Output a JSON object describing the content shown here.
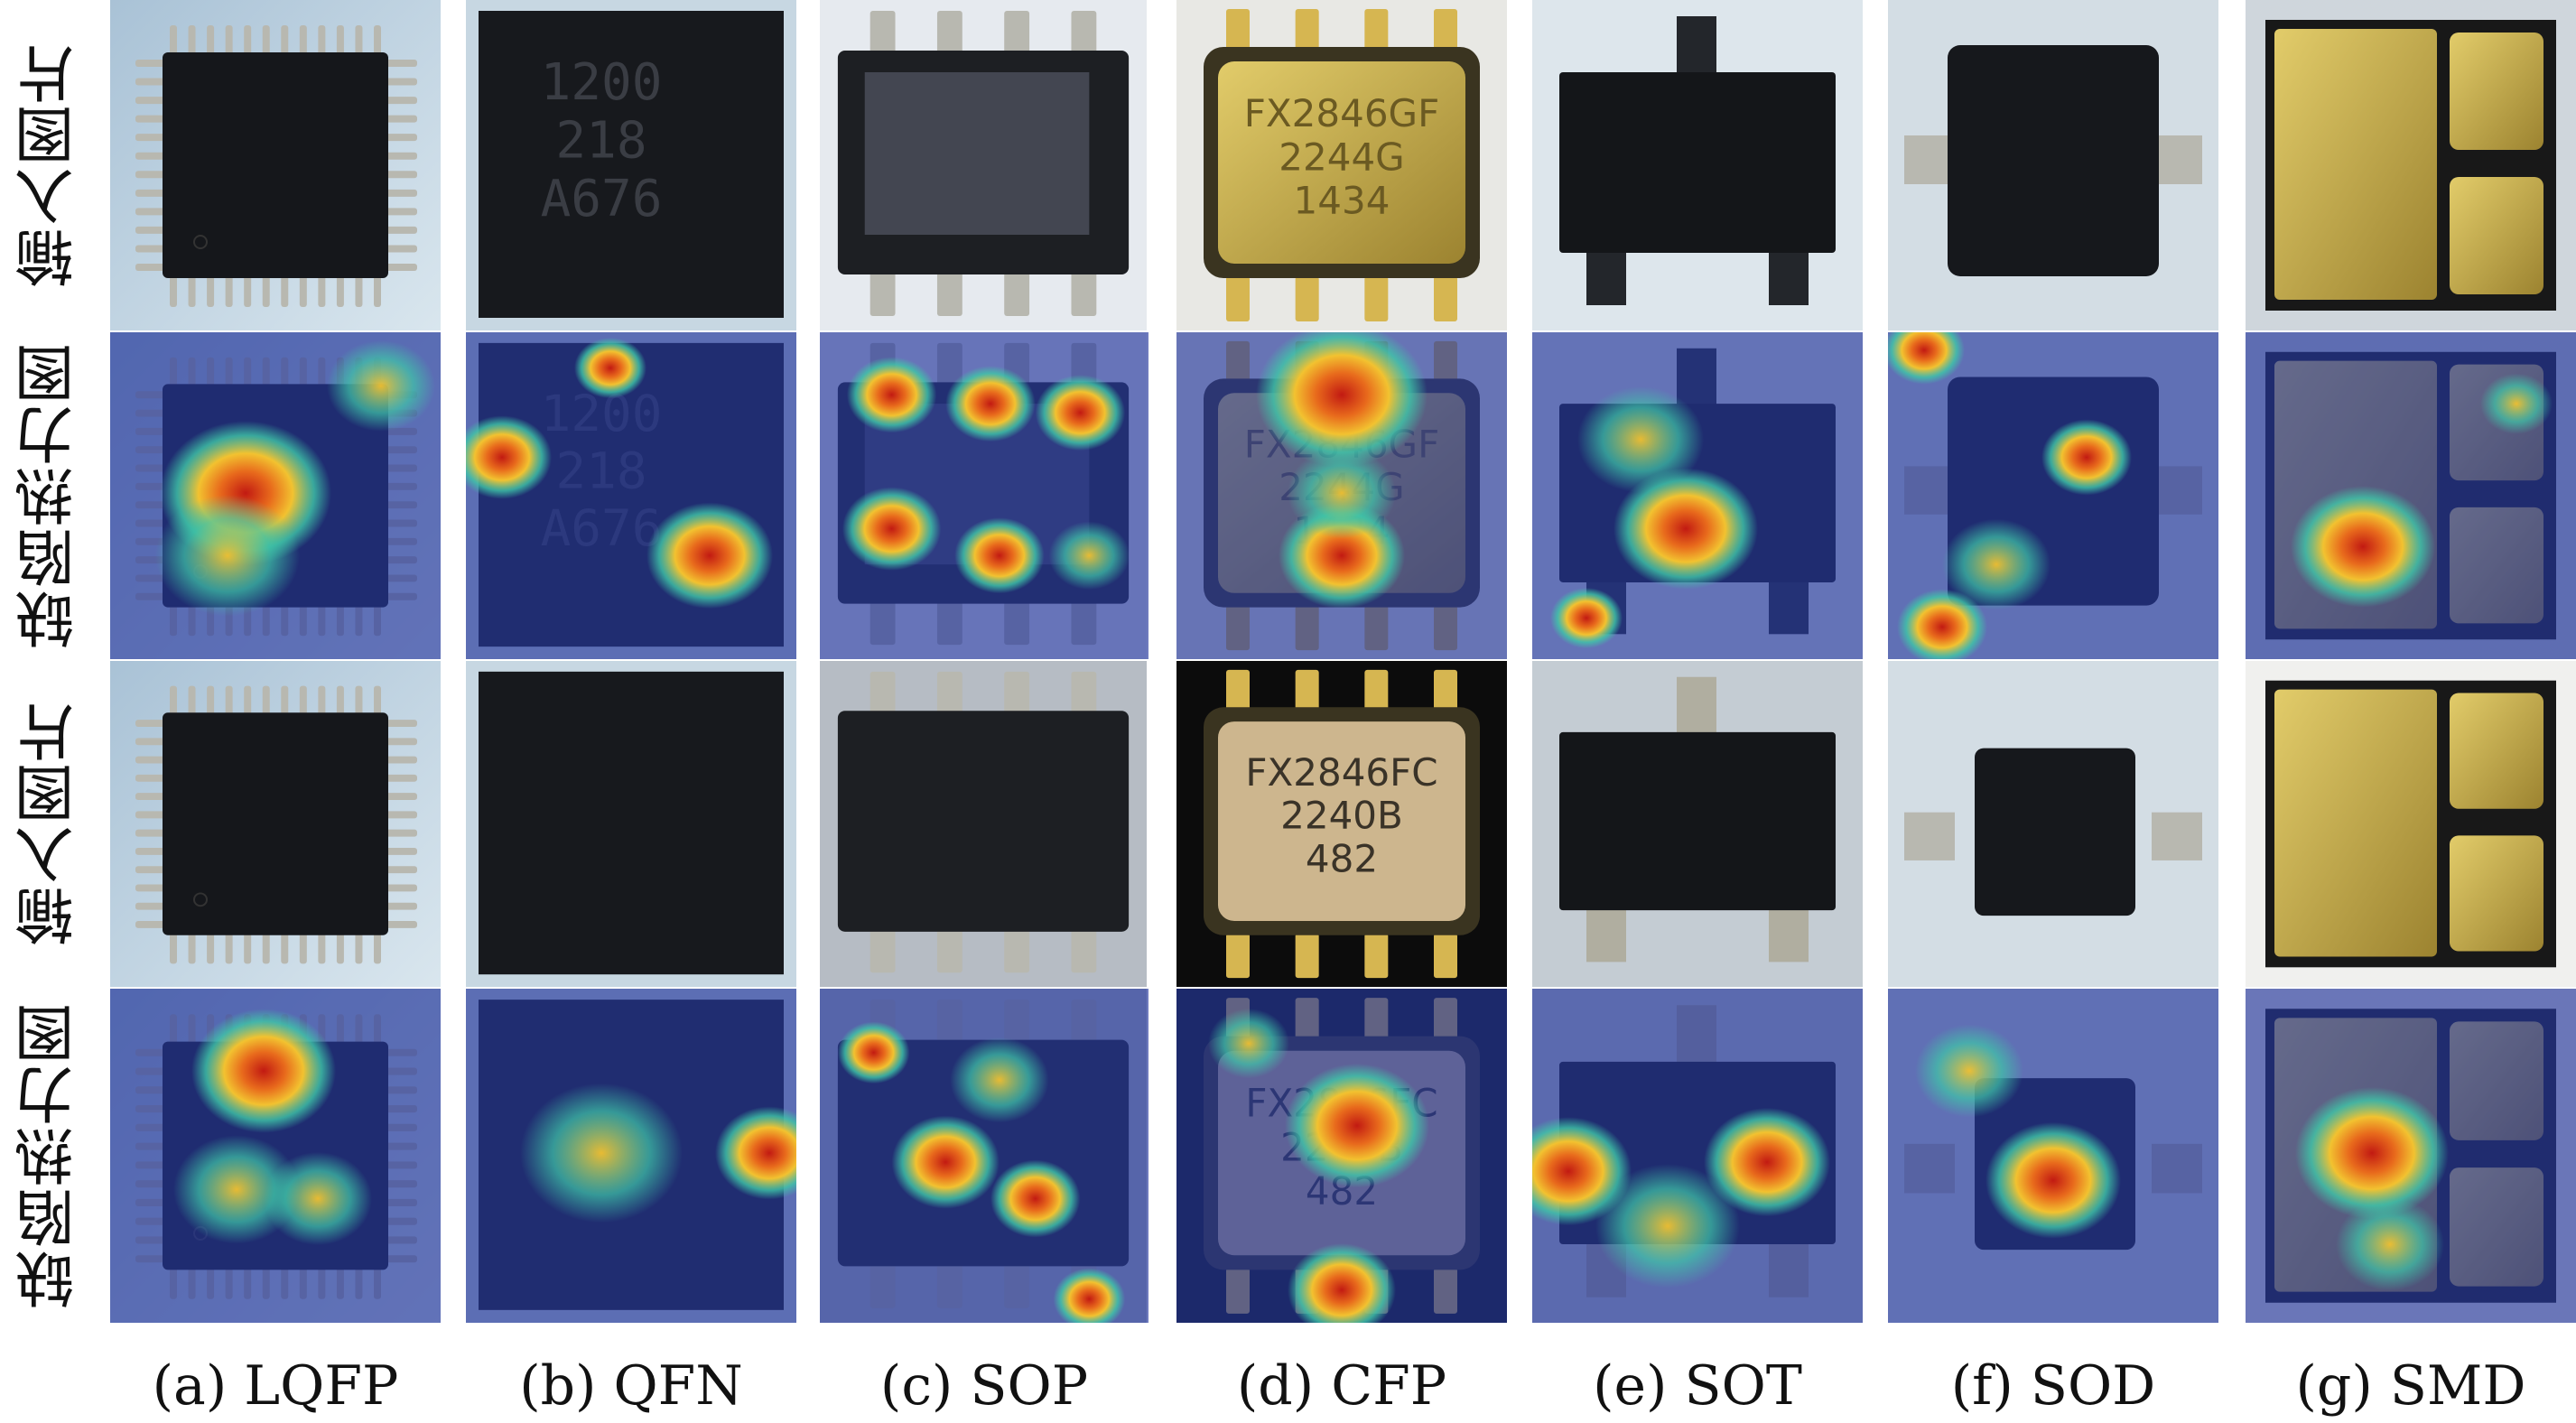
{
  "row_labels": [
    "输入图片",
    "缺陷热力图",
    "输入图片",
    "缺陷热力图"
  ],
  "columns": [
    {
      "caption": "(a) LQFP",
      "top_markings": "",
      "bottom_markings": ""
    },
    {
      "caption": "(b) QFN",
      "top_markings": "1200\n218\nA676",
      "bottom_markings": ""
    },
    {
      "caption": "(c) SOP",
      "top_markings": "",
      "bottom_markings": ""
    },
    {
      "caption": "(d) CFP",
      "top_markings": "FX2846GF\n2244G\n1434",
      "bottom_markings": "FX2846FC\n2240B\n482"
    },
    {
      "caption": "(e) SOT",
      "top_markings": "",
      "bottom_markings": ""
    },
    {
      "caption": "(f) SOD",
      "top_markings": "",
      "bottom_markings": ""
    },
    {
      "caption": "(g) SMD",
      "top_markings": "",
      "bottom_markings": ""
    }
  ],
  "colors": {
    "heat_low": "#2b3fa8",
    "heat_mid": "#3fc7a8",
    "heat_high": "#f2c230",
    "heat_peak": "#c21a12",
    "gold": "#c9ae45"
  }
}
